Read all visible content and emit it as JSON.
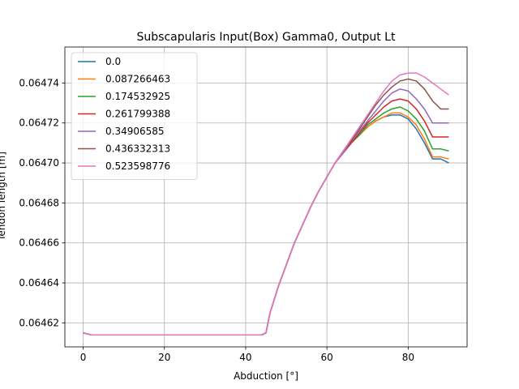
{
  "chart_data": {
    "type": "line",
    "title": "Subscapularis Input(Box) Gamma0, Output Lt",
    "xlabel": "Abduction [°]",
    "ylabel": "Tendon length [m]",
    "xlim": [
      -4.5,
      94.5
    ],
    "ylim": [
      0.064608,
      0.064758
    ],
    "xticks": [
      0,
      20,
      40,
      60,
      80
    ],
    "yticks": [
      0.06462,
      0.06464,
      0.06466,
      0.06468,
      0.0647,
      0.06472,
      0.06474
    ],
    "ytick_labels": [
      "0.06462",
      "0.06464",
      "0.06466",
      "0.06468",
      "0.06470",
      "0.06472",
      "0.06474"
    ],
    "grid": true,
    "legend_position": "top-left",
    "x": [
      0,
      2,
      4,
      10,
      20,
      30,
      40,
      44,
      45,
      46,
      48,
      50,
      52,
      54,
      56,
      58,
      60,
      62,
      64,
      66,
      68,
      70,
      72,
      74,
      76,
      78,
      80,
      82,
      84,
      86,
      88,
      90
    ],
    "series": [
      {
        "name": "0.0",
        "color": "#1f77b4",
        "values": [
          0.064615,
          0.064614,
          0.064614,
          0.064614,
          0.064614,
          0.064614,
          0.064614,
          0.064614,
          0.064615,
          0.064625,
          0.064638,
          0.064649,
          0.06466,
          0.064669,
          0.064678,
          0.064686,
          0.064693,
          0.0647,
          0.064705,
          0.06471,
          0.064714,
          0.064718,
          0.064721,
          0.064723,
          0.064724,
          0.064724,
          0.064722,
          0.064717,
          0.06471,
          0.064702,
          0.064702,
          0.0647
        ]
      },
      {
        "name": "0.087266463",
        "color": "#ff7f0e",
        "values": [
          0.064615,
          0.064614,
          0.064614,
          0.064614,
          0.064614,
          0.064614,
          0.064614,
          0.064614,
          0.064615,
          0.064625,
          0.064638,
          0.064649,
          0.06466,
          0.064669,
          0.064678,
          0.064686,
          0.064693,
          0.0647,
          0.064705,
          0.06471,
          0.064714,
          0.064718,
          0.064721,
          0.064723,
          0.064725,
          0.064725,
          0.064723,
          0.064719,
          0.064712,
          0.064703,
          0.064703,
          0.064702
        ]
      },
      {
        "name": "0.174532925",
        "color": "#2ca02c",
        "values": [
          0.064615,
          0.064614,
          0.064614,
          0.064614,
          0.064614,
          0.064614,
          0.064614,
          0.064614,
          0.064615,
          0.064625,
          0.064638,
          0.064649,
          0.06466,
          0.064669,
          0.064678,
          0.064686,
          0.064693,
          0.0647,
          0.064705,
          0.06471,
          0.064714,
          0.064719,
          0.064722,
          0.064725,
          0.064727,
          0.064728,
          0.064726,
          0.064722,
          0.064716,
          0.064707,
          0.064707,
          0.064706
        ]
      },
      {
        "name": "0.261799388",
        "color": "#d62728",
        "values": [
          0.064615,
          0.064614,
          0.064614,
          0.064614,
          0.064614,
          0.064614,
          0.064614,
          0.064614,
          0.064615,
          0.064625,
          0.064638,
          0.064649,
          0.06466,
          0.064669,
          0.064678,
          0.064686,
          0.064693,
          0.0647,
          0.064705,
          0.06471,
          0.064715,
          0.06472,
          0.064724,
          0.064728,
          0.064731,
          0.064732,
          0.064731,
          0.064727,
          0.064721,
          0.064713,
          0.064713,
          0.064713
        ]
      },
      {
        "name": "0.34906585",
        "color": "#9467bd",
        "values": [
          0.064615,
          0.064614,
          0.064614,
          0.064614,
          0.064614,
          0.064614,
          0.064614,
          0.064614,
          0.064615,
          0.064625,
          0.064638,
          0.064649,
          0.06466,
          0.064669,
          0.064678,
          0.064686,
          0.064693,
          0.0647,
          0.064705,
          0.064711,
          0.064716,
          0.064721,
          0.064726,
          0.064731,
          0.064735,
          0.064737,
          0.064736,
          0.064732,
          0.064727,
          0.06472,
          0.06472,
          0.06472
        ]
      },
      {
        "name": "0.436332313",
        "color": "#8c564b",
        "values": [
          0.064615,
          0.064614,
          0.064614,
          0.064614,
          0.064614,
          0.064614,
          0.064614,
          0.064614,
          0.064615,
          0.064625,
          0.064638,
          0.064649,
          0.06466,
          0.064669,
          0.064678,
          0.064686,
          0.064693,
          0.0647,
          0.064706,
          0.064711,
          0.064717,
          0.064723,
          0.064729,
          0.064734,
          0.064738,
          0.064741,
          0.064742,
          0.064741,
          0.064737,
          0.064731,
          0.064727,
          0.064727
        ]
      },
      {
        "name": "0.523598776",
        "color": "#e377c2",
        "values": [
          0.064615,
          0.064614,
          0.064614,
          0.064614,
          0.064614,
          0.064614,
          0.064614,
          0.064614,
          0.064615,
          0.064625,
          0.064638,
          0.064649,
          0.06466,
          0.064669,
          0.064678,
          0.064686,
          0.064693,
          0.0647,
          0.064706,
          0.064712,
          0.064718,
          0.064724,
          0.06473,
          0.064736,
          0.064741,
          0.064744,
          0.064745,
          0.064745,
          0.064743,
          0.06474,
          0.064737,
          0.064734
        ]
      }
    ]
  }
}
